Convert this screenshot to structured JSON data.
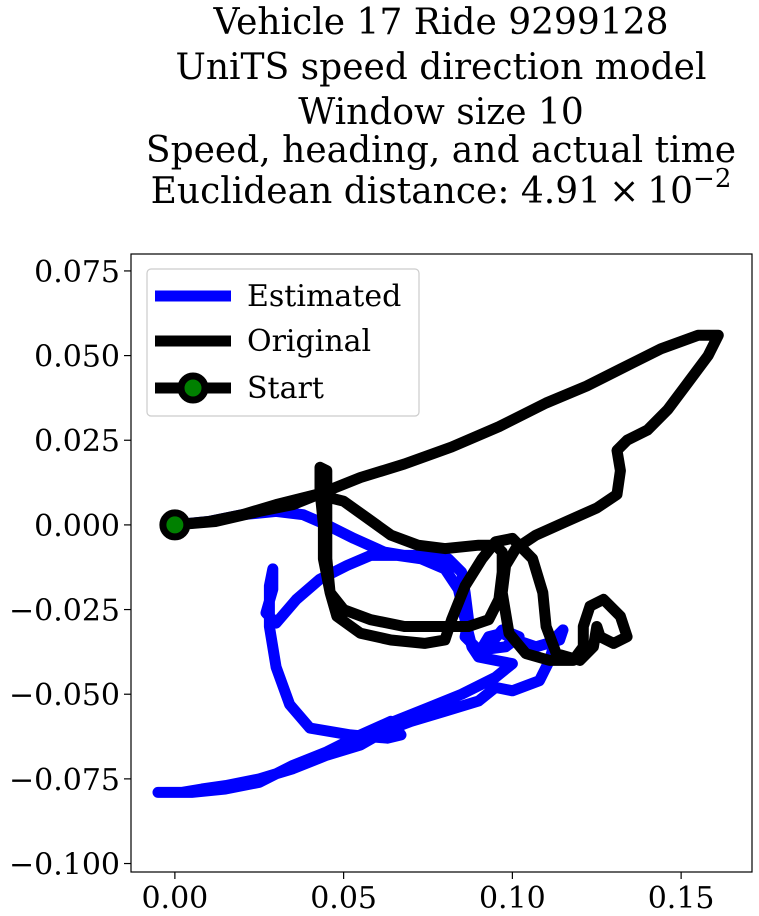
{
  "chart_data": {
    "type": "line",
    "title_lines": [
      "Vehicle 17 Ride 9299128",
      "UniTS speed direction model",
      "Window size 10",
      "Speed, heading, and actual time"
    ],
    "title_distance_prefix": "Euclidean distance: 4.91",
    "title_distance_times": "×",
    "title_distance_base": "10",
    "title_distance_exp": "−2",
    "xlabel": "",
    "ylabel": "",
    "xlim": [
      -0.013,
      0.171
    ],
    "ylim": [
      -0.1025,
      0.08
    ],
    "xticks": [
      0.0,
      0.05,
      0.1,
      0.15
    ],
    "xtick_labels": [
      "0.00",
      "0.05",
      "0.10",
      "0.15"
    ],
    "yticks": [
      0.075,
      0.05,
      0.025,
      0.0,
      -0.025,
      -0.05,
      -0.075,
      -0.1
    ],
    "ytick_labels": [
      "0.075",
      "0.050",
      "0.025",
      "0.000",
      "−0.025",
      "−0.050",
      "−0.075",
      "−0.100"
    ],
    "grid": false,
    "legend_position": "top-left",
    "legend": [
      {
        "label": "Estimated",
        "color": "#0000ff",
        "marker": false
      },
      {
        "label": "Original",
        "color": "#000000",
        "marker": false
      },
      {
        "label": "Start",
        "color": "#000000",
        "marker": true,
        "marker_face": "#008000"
      }
    ],
    "series": [
      {
        "name": "Estimated",
        "color": "#0000ff",
        "points": [
          [
            0.0,
            0.0
          ],
          [
            0.01,
            0.001
          ],
          [
            0.02,
            0.003
          ],
          [
            0.03,
            0.004
          ],
          [
            0.038,
            0.003
          ],
          [
            0.045,
            0.0
          ],
          [
            0.053,
            -0.004
          ],
          [
            0.062,
            -0.008
          ],
          [
            0.068,
            -0.009
          ],
          [
            0.075,
            -0.009
          ],
          [
            0.081,
            -0.01
          ],
          [
            0.085,
            -0.014
          ],
          [
            0.086,
            -0.02
          ],
          [
            0.087,
            -0.028
          ],
          [
            0.086,
            -0.033
          ],
          [
            0.09,
            -0.037
          ],
          [
            0.098,
            -0.036
          ],
          [
            0.102,
            -0.033
          ],
          [
            0.097,
            -0.031
          ],
          [
            0.092,
            -0.037
          ],
          [
            0.09,
            -0.038
          ],
          [
            0.093,
            -0.033
          ],
          [
            0.097,
            -0.032
          ],
          [
            0.101,
            -0.034
          ],
          [
            0.107,
            -0.036
          ],
          [
            0.114,
            -0.034
          ],
          [
            0.115,
            -0.031
          ],
          [
            0.113,
            -0.033
          ],
          [
            0.111,
            -0.04
          ],
          [
            0.108,
            -0.046
          ],
          [
            0.1,
            -0.049
          ],
          [
            0.095,
            -0.048
          ],
          [
            0.09,
            -0.052
          ],
          [
            0.08,
            -0.055
          ],
          [
            0.07,
            -0.058
          ],
          [
            0.062,
            -0.061
          ],
          [
            0.055,
            -0.065
          ],
          [
            0.045,
            -0.068
          ],
          [
            0.035,
            -0.072
          ],
          [
            0.025,
            -0.075
          ],
          [
            0.015,
            -0.077
          ],
          [
            0.008,
            -0.078
          ],
          [
            0.002,
            -0.079
          ],
          [
            -0.005,
            -0.079
          ],
          [
            -0.003,
            -0.079
          ],
          [
            0.005,
            -0.079
          ],
          [
            0.015,
            -0.078
          ],
          [
            0.025,
            -0.076
          ],
          [
            0.035,
            -0.071
          ],
          [
            0.045,
            -0.067
          ],
          [
            0.055,
            -0.062
          ],
          [
            0.065,
            -0.058
          ],
          [
            0.075,
            -0.054
          ],
          [
            0.085,
            -0.05
          ],
          [
            0.095,
            -0.045
          ],
          [
            0.1,
            -0.041
          ],
          [
            0.095,
            -0.04
          ],
          [
            0.09,
            -0.039
          ],
          [
            0.088,
            -0.036
          ],
          [
            0.086,
            -0.028
          ],
          [
            0.084,
            -0.019
          ],
          [
            0.08,
            -0.013
          ],
          [
            0.073,
            -0.01
          ],
          [
            0.066,
            -0.009
          ],
          [
            0.058,
            -0.009
          ],
          [
            0.051,
            -0.012
          ],
          [
            0.043,
            -0.016
          ],
          [
            0.036,
            -0.022
          ],
          [
            0.03,
            -0.029
          ],
          [
            0.027,
            -0.026
          ],
          [
            0.029,
            -0.019
          ],
          [
            0.029,
            -0.013
          ],
          [
            0.028,
            -0.018
          ],
          [
            0.028,
            -0.024
          ],
          [
            0.028,
            -0.03
          ],
          [
            0.03,
            -0.042
          ],
          [
            0.034,
            -0.053
          ],
          [
            0.04,
            -0.06
          ],
          [
            0.052,
            -0.062
          ],
          [
            0.063,
            -0.063
          ],
          [
            0.067,
            -0.062
          ],
          [
            0.064,
            -0.058
          ],
          [
            0.055,
            -0.062
          ]
        ]
      },
      {
        "name": "Original",
        "color": "#000000",
        "points": [
          [
            0.0,
            0.0
          ],
          [
            0.012,
            0.001
          ],
          [
            0.025,
            0.004
          ],
          [
            0.035,
            0.006
          ],
          [
            0.045,
            0.01
          ],
          [
            0.055,
            0.014
          ],
          [
            0.068,
            0.018
          ],
          [
            0.082,
            0.023
          ],
          [
            0.096,
            0.029
          ],
          [
            0.11,
            0.036
          ],
          [
            0.122,
            0.041
          ],
          [
            0.132,
            0.046
          ],
          [
            0.144,
            0.052
          ],
          [
            0.155,
            0.056
          ],
          [
            0.161,
            0.056
          ],
          [
            0.158,
            0.05
          ],
          [
            0.152,
            0.042
          ],
          [
            0.146,
            0.034
          ],
          [
            0.14,
            0.028
          ],
          [
            0.134,
            0.025
          ],
          [
            0.131,
            0.022
          ],
          [
            0.132,
            0.016
          ],
          [
            0.131,
            0.009
          ],
          [
            0.125,
            0.005
          ],
          [
            0.116,
            0.001
          ],
          [
            0.107,
            -0.003
          ],
          [
            0.101,
            -0.007
          ],
          [
            0.098,
            -0.012
          ],
          [
            0.097,
            -0.02
          ],
          [
            0.099,
            -0.032
          ],
          [
            0.104,
            -0.038
          ],
          [
            0.111,
            -0.04
          ],
          [
            0.118,
            -0.04
          ],
          [
            0.121,
            -0.036
          ],
          [
            0.121,
            -0.03
          ],
          [
            0.123,
            -0.024
          ],
          [
            0.127,
            -0.022
          ],
          [
            0.132,
            -0.027
          ],
          [
            0.134,
            -0.033
          ],
          [
            0.13,
            -0.035
          ],
          [
            0.126,
            -0.033
          ],
          [
            0.125,
            -0.03
          ],
          [
            0.124,
            -0.036
          ],
          [
            0.12,
            -0.04
          ],
          [
            0.113,
            -0.038
          ],
          [
            0.11,
            -0.03
          ],
          [
            0.109,
            -0.02
          ],
          [
            0.106,
            -0.01
          ],
          [
            0.1,
            -0.004
          ],
          [
            0.095,
            -0.005
          ],
          [
            0.091,
            -0.01
          ],
          [
            0.086,
            -0.018
          ],
          [
            0.082,
            -0.028
          ],
          [
            0.08,
            -0.034
          ],
          [
            0.074,
            -0.035
          ],
          [
            0.064,
            -0.034
          ],
          [
            0.055,
            -0.032
          ],
          [
            0.048,
            -0.027
          ],
          [
            0.046,
            -0.02
          ],
          [
            0.045,
            -0.01
          ],
          [
            0.045,
            0.0
          ],
          [
            0.045,
            0.01
          ],
          [
            0.045,
            0.016
          ],
          [
            0.043,
            0.017
          ],
          [
            0.043,
            0.01
          ],
          [
            0.044,
            0.0
          ],
          [
            0.044,
            -0.01
          ],
          [
            0.046,
            -0.02
          ],
          [
            0.05,
            -0.025
          ],
          [
            0.058,
            -0.028
          ],
          [
            0.068,
            -0.03
          ],
          [
            0.078,
            -0.03
          ],
          [
            0.087,
            -0.03
          ],
          [
            0.093,
            -0.028
          ],
          [
            0.096,
            -0.022
          ],
          [
            0.097,
            -0.014
          ],
          [
            0.097,
            -0.008
          ],
          [
            0.095,
            -0.006
          ],
          [
            0.09,
            -0.006
          ],
          [
            0.08,
            -0.007
          ],
          [
            0.072,
            -0.006
          ],
          [
            0.064,
            -0.003
          ],
          [
            0.057,
            0.002
          ],
          [
            0.05,
            0.007
          ],
          [
            0.042,
            0.009
          ],
          [
            0.03,
            0.006
          ],
          [
            0.02,
            0.003
          ],
          [
            0.01,
            0.001
          ],
          [
            0.0,
            0.0
          ]
        ]
      }
    ],
    "start_marker": {
      "x": 0.0,
      "y": 0.0,
      "edge_color": "#000000",
      "face_color": "#008000"
    }
  }
}
